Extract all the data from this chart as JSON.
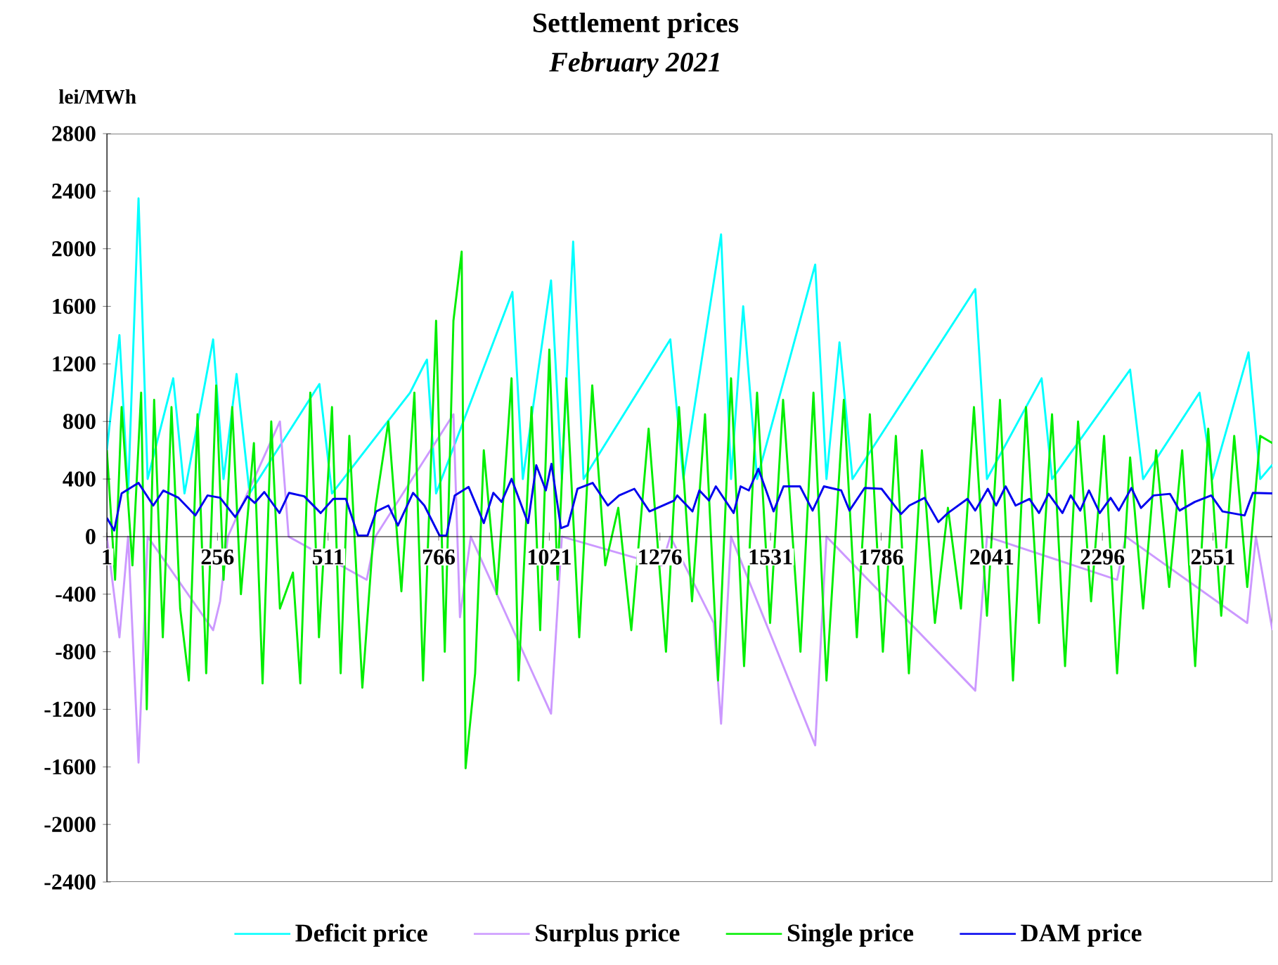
{
  "chart_data": {
    "type": "line",
    "title": "Settlement prices",
    "subtitle": "February 2021",
    "ylabel": "lei/MWh",
    "xlim": [
      1,
      2688
    ],
    "xticks": [
      1,
      256,
      511,
      766,
      1021,
      1276,
      1531,
      1786,
      2041,
      2296,
      2551
    ],
    "ylim": [
      -2400,
      2800
    ],
    "yticks": [
      -2400,
      -2000,
      -1600,
      -1200,
      -800,
      -400,
      0,
      400,
      800,
      1200,
      1600,
      2000,
      2400,
      2800
    ],
    "grid": false,
    "legend": "bottom",
    "marker": "none",
    "line_style": "solid",
    "series": [
      {
        "name": "Deficit price",
        "color": "#00ffff",
        "x": [
          1,
          30,
          50,
          74,
          95,
          154,
          180,
          246,
          270,
          300,
          330,
          491,
          520,
          700,
          730,
          739,
          760,
          936,
          960,
          1025,
          1050,
          1076,
          1100,
          1300,
          1330,
          1417,
          1440,
          1468,
          1500,
          1634,
          1660,
          1690,
          1720,
          2003,
          2030,
          2156,
          2180,
          2360,
          2390,
          2520,
          2550,
          2633,
          2660,
          2688
        ],
        "values": [
          600,
          1400,
          300,
          2350,
          400,
          1100,
          300,
          1370,
          400,
          1130,
          300,
          1060,
          300,
          1000,
          1180,
          1230,
          300,
          1700,
          400,
          1780,
          400,
          2050,
          400,
          1370,
          400,
          2100,
          400,
          1600,
          400,
          1890,
          400,
          1350,
          400,
          1720,
          400,
          1100,
          400,
          1160,
          400,
          1000,
          400,
          1280,
          400,
          500
        ]
      },
      {
        "name": "Surplus price",
        "color": "#cc99ff",
        "x": [
          1,
          30,
          50,
          74,
          95,
          246,
          262,
          280,
          400,
          420,
          600,
          620,
          800,
          815,
          840,
          1025,
          1050,
          1280,
          1300,
          1400,
          1417,
          1440,
          1634,
          1660,
          2003,
          2030,
          2330,
          2350,
          2630,
          2650,
          2688
        ],
        "values": [
          0,
          -700,
          0,
          -1570,
          0,
          -650,
          -450,
          0,
          800,
          0,
          -300,
          0,
          850,
          -560,
          0,
          -1230,
          0,
          -200,
          0,
          -600,
          -1300,
          0,
          -1450,
          0,
          -1070,
          0,
          -300,
          0,
          -600,
          0,
          -650
        ]
      },
      {
        "name": "Single price",
        "color": "#00ee00",
        "x": [
          1,
          20,
          35,
          60,
          80,
          93,
          110,
          130,
          150,
          170,
          190,
          210,
          230,
          253,
          270,
          290,
          310,
          340,
          360,
          380,
          400,
          430,
          447,
          470,
          490,
          520,
          540,
          560,
          590,
          620,
          650,
          680,
          710,
          730,
          760,
          780,
          800,
          819,
          828,
          850,
          870,
          900,
          934,
          950,
          980,
          1000,
          1021,
          1040,
          1060,
          1090,
          1120,
          1150,
          1180,
          1210,
          1250,
          1290,
          1320,
          1350,
          1380,
          1410,
          1440,
          1470,
          1500,
          1530,
          1560,
          1600,
          1630,
          1660,
          1700,
          1730,
          1760,
          1790,
          1820,
          1850,
          1880,
          1910,
          1940,
          1970,
          2000,
          2030,
          2060,
          2090,
          2120,
          2150,
          2180,
          2210,
          2240,
          2270,
          2300,
          2330,
          2360,
          2390,
          2420,
          2450,
          2480,
          2510,
          2540,
          2570,
          2600,
          2630,
          2660,
          2688
        ],
        "values": [
          600,
          -300,
          900,
          -200,
          1000,
          -1200,
          950,
          -700,
          900,
          -500,
          -1000,
          850,
          -950,
          1050,
          -300,
          900,
          -400,
          650,
          -1020,
          800,
          -500,
          -250,
          -1020,
          1000,
          -700,
          900,
          -950,
          700,
          -1050,
          200,
          800,
          -380,
          1000,
          -1000,
          1500,
          -800,
          1500,
          1980,
          -1610,
          -950,
          600,
          -400,
          1100,
          -1000,
          900,
          -650,
          1300,
          -300,
          1100,
          -700,
          1050,
          -200,
          200,
          -650,
          750,
          -800,
          900,
          -450,
          850,
          -1000,
          1100,
          -900,
          1000,
          -600,
          950,
          -800,
          1000,
          -1000,
          950,
          -700,
          850,
          -800,
          700,
          -950,
          600,
          -600,
          200,
          -500,
          900,
          -550,
          950,
          -1000,
          900,
          -600,
          850,
          -900,
          800,
          -450,
          700,
          -950,
          550,
          -500,
          600,
          -350,
          600,
          -900,
          750,
          -550,
          700,
          -350,
          700,
          650
        ]
      },
      {
        "name": "DAM price",
        "color": "#0000ee",
        "x": [
          1,
          18,
          35,
          74,
          108,
          131,
          166,
          205,
          233,
          262,
          297,
          325,
          342,
          364,
          399,
          421,
          456,
          494,
          523,
          552,
          580,
          602,
          622,
          650,
          672,
          707,
          733,
          768,
          784,
          803,
          835,
          870,
          892,
          911,
          934,
          972,
          991,
          1013,
          1026,
          1048,
          1064,
          1086,
          1121,
          1156,
          1182,
          1217,
          1252,
          1309,
          1316,
          1351,
          1367,
          1389,
          1405,
          1446,
          1462,
          1481,
          1503,
          1538,
          1561,
          1599,
          1628,
          1654,
          1694,
          1713,
          1748,
          1787,
          1832,
          1851,
          1886,
          1918,
          1940,
          1985,
          2003,
          2032,
          2051,
          2073,
          2096,
          2128,
          2150,
          2172,
          2204,
          2223,
          2245,
          2265,
          2290,
          2315,
          2334,
          2363,
          2385,
          2414,
          2452,
          2474,
          2509,
          2547,
          2573,
          2624,
          2643,
          2688
        ],
        "values": [
          130,
          42,
          300,
          373,
          216,
          320,
          270,
          147,
          286,
          270,
          136,
          280,
          234,
          310,
          164,
          304,
          280,
          164,
          262,
          262,
          7,
          7,
          175,
          216,
          77,
          304,
          216,
          7,
          7,
          286,
          345,
          94,
          304,
          241,
          401,
          94,
          496,
          321,
          506,
          59,
          77,
          332,
          373,
          216,
          286,
          332,
          175,
          251,
          286,
          175,
          321,
          251,
          349,
          164,
          349,
          321,
          471,
          175,
          349,
          349,
          181,
          349,
          321,
          181,
          338,
          332,
          157,
          216,
          269,
          101,
          164,
          262,
          181,
          332,
          216,
          349,
          216,
          262,
          164,
          297,
          164,
          286,
          181,
          321,
          164,
          269,
          181,
          338,
          199,
          286,
          297,
          181,
          241,
          286,
          175,
          147,
          304,
          300
        ]
      }
    ]
  }
}
